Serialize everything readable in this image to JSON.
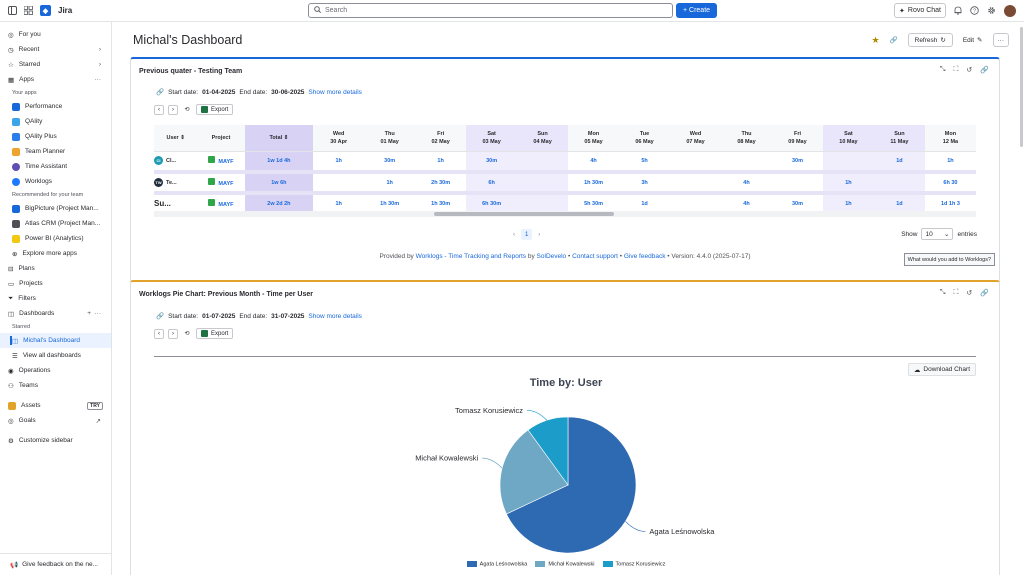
{
  "topbar": {
    "brand": "Jira",
    "search_placeholder": "Search",
    "create_label": "Create",
    "rovo_label": "Rovo Chat"
  },
  "sidebar": {
    "items": [
      {
        "label": "For you"
      },
      {
        "label": "Recent"
      },
      {
        "label": "Starred"
      },
      {
        "label": "Apps"
      }
    ],
    "your_apps_heading": "Your apps",
    "apps": [
      {
        "label": "Performance",
        "color": "#1868db"
      },
      {
        "label": "QAlity",
        "color": "#3aa5e8"
      },
      {
        "label": "QAlity Plus",
        "color": "#2b7de9"
      },
      {
        "label": "Team Planner",
        "color": "#f0a22e"
      },
      {
        "label": "Time Assistant",
        "color": "#5e4db2"
      },
      {
        "label": "Worklogs",
        "color": "#1d7afc"
      }
    ],
    "recommended_heading": "Recommended for your team",
    "recommended": [
      {
        "label": "BigPicture (Project Man...",
        "color": "#1868db"
      },
      {
        "label": "Atlas CRM (Project Man...",
        "color": "#505258"
      },
      {
        "label": "Power BI (Analytics)",
        "color": "#f2c811"
      },
      {
        "label": "Explore more apps",
        "color": "#8c8f97"
      }
    ],
    "nav": [
      {
        "label": "Plans"
      },
      {
        "label": "Projects"
      },
      {
        "label": "Filters"
      },
      {
        "label": "Dashboards"
      }
    ],
    "starred_heading": "Starred",
    "active_dashboard": "Michal's Dashboard",
    "view_all": "View all dashboards",
    "nav2": [
      {
        "label": "Operations"
      },
      {
        "label": "Teams"
      }
    ],
    "assets": "Assets",
    "try_badge": "TRY",
    "goals": "Goals",
    "customize": "Customize sidebar",
    "feedback": "Give feedback on the ne..."
  },
  "page": {
    "title": "Michal's Dashboard",
    "refresh_label": "Refresh",
    "edit_label": "Edit"
  },
  "gadget1": {
    "title": "Previous quater - Testing Team",
    "start_label": "Start date:",
    "start_date": "01-04-2025",
    "end_label": "End date:",
    "end_date": "30-06-2025",
    "more_details": "Show more details",
    "export_label": "Export",
    "columns": [
      "User",
      "Project",
      "Total",
      "Wed\n30 Apr",
      "Thu\n01 May",
      "Fri\n02 May",
      "Sat\n03 May",
      "Sun\n04 May",
      "Mon\n05 May",
      "Tue\n06 May",
      "Wed\n07 May",
      "Thu\n08 May",
      "Fri\n09 May",
      "Sat\n10 May",
      "Sun\n11 May",
      "Mon\n12 Ma"
    ],
    "col_head": [
      [
        "User ⇕",
        ""
      ],
      [
        "Project",
        ""
      ],
      [
        "Total ⇕",
        ""
      ],
      [
        "Wed",
        "30 Apr"
      ],
      [
        "Thu",
        "01 May"
      ],
      [
        "Fri",
        "02 May"
      ],
      [
        "Sat",
        "03 May"
      ],
      [
        "Sun",
        "04 May"
      ],
      [
        "Mon",
        "05 May"
      ],
      [
        "Tue",
        "06 May"
      ],
      [
        "Wed",
        "07 May"
      ],
      [
        "Thu",
        "08 May"
      ],
      [
        "Fri",
        "09 May"
      ],
      [
        "Sat",
        "10 May"
      ],
      [
        "Sun",
        "11 May"
      ],
      [
        "Mon",
        "12 Ma"
      ]
    ],
    "rows": [
      {
        "user": "Cl...",
        "badge": "CI",
        "badge_color": "#1d9bb3",
        "project": "MAYF",
        "total": "1w 1d 4h",
        "days": [
          "1h",
          "30m",
          "1h",
          "30m",
          "",
          "4h",
          "5h",
          "",
          "",
          "30m",
          "",
          "1d",
          "1h"
        ]
      },
      {
        "user": "Te...",
        "badge": "TW",
        "badge_color": "#1f2d3d",
        "project": "MAYF",
        "total": "1w 6h",
        "days": [
          "",
          "1h",
          "2h 30m",
          "6h",
          "",
          "1h 30m",
          "3h",
          "",
          "4h",
          "",
          "1h",
          "",
          "6h 30"
        ]
      },
      {
        "user": "Su...",
        "badge": "",
        "badge_color": "#ffffff",
        "project": "MAYF",
        "total": "2w 2d 2h",
        "days": [
          "1h",
          "1h 30m",
          "1h 30m",
          "6h 30m",
          "",
          "5h 30m",
          "1d",
          "",
          "4h",
          "30m",
          "1h",
          "1d",
          "1d 1h 3"
        ]
      }
    ],
    "page_num": "1",
    "show_label": "Show",
    "show_value": "10",
    "entries_label": "entries",
    "footer_provided": "Provided by",
    "footer_link": "Worklogs - Time Tracking and Reports",
    "footer_by": "by",
    "footer_vendor": "SolDevelo",
    "footer_contact": "Contact support",
    "footer_feedback": "Give feedback",
    "footer_version": "Version: 4.4.0 (2025-07-17)",
    "feedback_box": "What would you add to Worklogs?"
  },
  "gadget2": {
    "title": "Worklogs Pie Chart: Previous Month - Time per User",
    "start_label": "Start date:",
    "start_date": "01-07-2025",
    "end_label": "End date:",
    "end_date": "31-07-2025",
    "more_details": "Show more details",
    "export_label": "Export",
    "download_label": "Download Chart"
  },
  "chart_data": {
    "type": "pie",
    "title": "Time by: User",
    "labels": [
      "Agata Leśnowolska",
      "Michał Kowalewski",
      "Tomasz Korusiewicz"
    ],
    "values": [
      68,
      22,
      10
    ],
    "colors": [
      "#2e6ab1",
      "#6fa8c5",
      "#1c9dc9"
    ],
    "legend_position": "bottom"
  }
}
